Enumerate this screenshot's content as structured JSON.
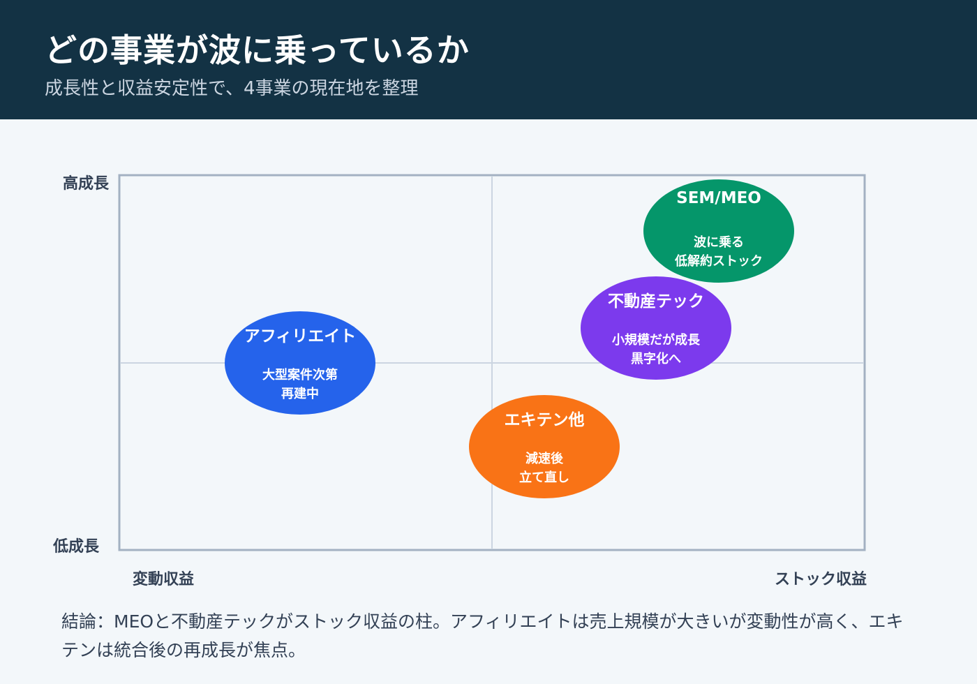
{
  "header": {
    "title": "どの事業が波に乗っているか",
    "subtitle": "成長性と収益安定性で、4事業の現在地を整理"
  },
  "axes": {
    "y_high": "高成長",
    "y_low": "低成長",
    "x_left": "変動収益",
    "x_right": "ストック収益"
  },
  "businesses": [
    {
      "name": "SEM/MEO",
      "lines": [
        "波に乗る",
        "低解約ストック"
      ],
      "color": "#05966a"
    },
    {
      "name": "不動産テック",
      "lines": [
        "小規模だが成長",
        "黒字化へ"
      ],
      "color": "#7c3aed"
    },
    {
      "name": "アフィリエイト",
      "lines": [
        "大型案件次第",
        "再建中"
      ],
      "color": "#2563eb"
    },
    {
      "name": "エキテン他",
      "lines": [
        "減速後",
        "立て直し"
      ],
      "color": "#f97316"
    }
  ],
  "conclusion": "結論：MEOと不動産テックがストック収益の柱。アフィリエイトは売上規模が大きいが変動性が高く、エキテンは統合後の再成長が焦点。",
  "colors": {
    "header_bg": "#133244",
    "frame": "#a3b1c2",
    "divider": "#cbd5e1"
  }
}
